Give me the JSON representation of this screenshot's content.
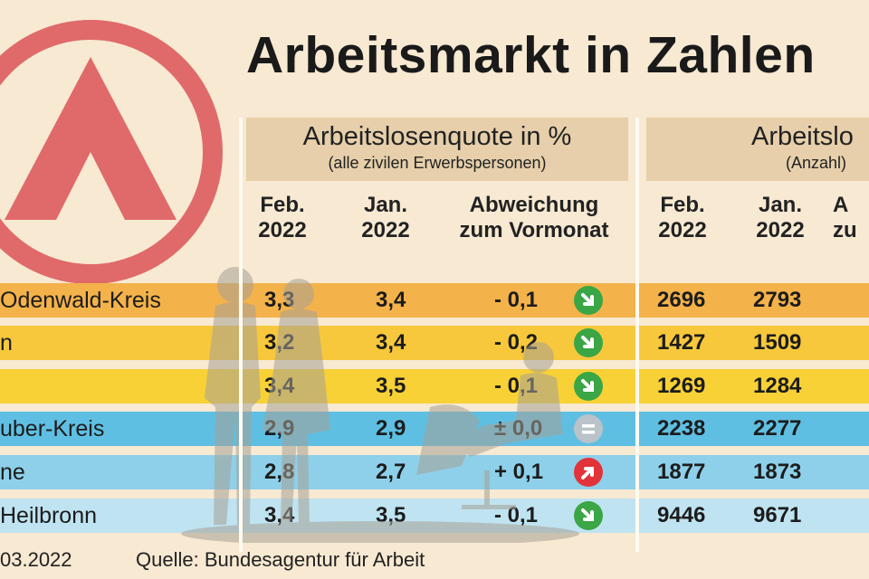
{
  "title": "Arbeitsmarkt in Zahlen",
  "section_quote": {
    "title": "Arbeitslosenquote in %",
    "subtitle": "(alle zivilen Erwerbspersonen)"
  },
  "section_count": {
    "title": "Arbeitslo",
    "subtitle": "(Anzahl)"
  },
  "col_headers": {
    "q_feb": "Feb.\n2022",
    "q_jan": "Jan.\n2022",
    "q_dev": "Abweichung\nzum Vormonat",
    "c_feb": "Feb.\n2022",
    "c_jan": "Jan.\n2022",
    "c_dev": "A\nzu"
  },
  "rows": [
    {
      "name": "Odenwald-Kreis",
      "q_feb": "3,3",
      "q_jan": "3,4",
      "dev": "-  0,1",
      "trend": "down",
      "c_feb": "2696",
      "c_jan": "2793",
      "color": "#f4b24a"
    },
    {
      "name": "n",
      "q_feb": "3,2",
      "q_jan": "3,4",
      "dev": "-  0,2",
      "trend": "down",
      "c_feb": "1427",
      "c_jan": "1509",
      "color": "#f7c83c"
    },
    {
      "name": "",
      "q_feb": "3,4",
      "q_jan": "3,5",
      "dev": "-  0,1",
      "trend": "down",
      "c_feb": "1269",
      "c_jan": "1284",
      "color": "#f7d136"
    },
    {
      "name": "uber-Kreis",
      "q_feb": "2,9",
      "q_jan": "2,9",
      "dev": "±  0,0",
      "trend": "equal",
      "c_feb": "2238",
      "c_jan": "2277",
      "color": "#5fbfe3"
    },
    {
      "name": "ne",
      "q_feb": "2,8",
      "q_jan": "2,7",
      "dev": "+  0,1",
      "trend": "up",
      "c_feb": "1877",
      "c_jan": "1873",
      "color": "#8ed0ea"
    },
    {
      "name": "Heilbronn",
      "q_feb": "3,4",
      "q_jan": "3,5",
      "dev": "-  0,1",
      "trend": "down",
      "c_feb": "9446",
      "c_jan": "9671",
      "color": "#bfe3f1"
    }
  ],
  "footer": {
    "date": "03.2022",
    "source": "Quelle: Bundesagentur für Arbeit"
  },
  "colors": {
    "background": "#f7e9d2",
    "logo": "#e06a6a",
    "arrow_down": "#3aa645",
    "arrow_up": "#e2323a",
    "equal": "#b9c3c9"
  },
  "icons": {
    "logo": "arbeitsagentur-logo-icon",
    "down": "arrow-down-right-icon",
    "up": "arrow-up-right-icon",
    "equal": "equal-icon"
  }
}
